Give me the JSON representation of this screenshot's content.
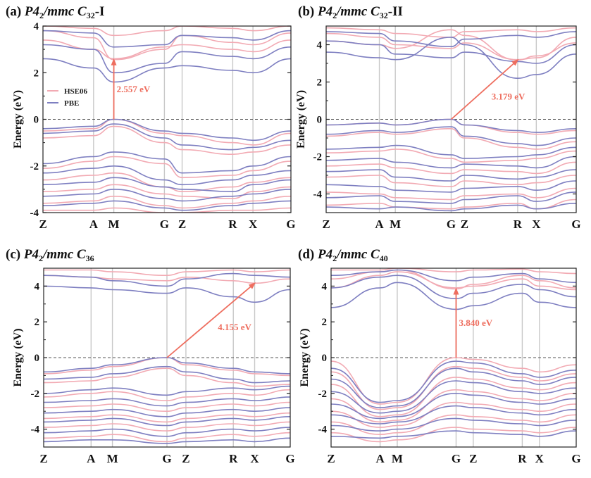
{
  "figure": {
    "colors": {
      "hse": "#f2aab3",
      "pbe": "#7e7fc1",
      "arrow": "#ee6e5f",
      "gridline": "#c8c8c8",
      "axis": "#222222"
    }
  },
  "chart_data": [
    {
      "id": "a",
      "type": "line",
      "title_prefix": "(a) ",
      "title_main": "P4",
      "title_sub": "2",
      "title_mid": "/mmc C",
      "title_sub2": "32",
      "title_suffix": "-I",
      "ylabel": "Energy (eV)",
      "ylim": [
        -4,
        4
      ],
      "yticks": [
        -4,
        -2,
        0,
        2,
        4
      ],
      "kpath": [
        "Z",
        "A",
        "M",
        "G",
        "Z",
        "R",
        "X",
        "G"
      ],
      "kpos": [
        0,
        1.0,
        1.4,
        2.4,
        2.75,
        3.75,
        4.15,
        4.9
      ],
      "legend": [
        {
          "name": "HSE06",
          "color": "#f2aab3"
        },
        {
          "name": "PBE",
          "color": "#7e7fc1"
        }
      ],
      "gap": {
        "label": "2.557 eV",
        "from": [
          1.4,
          0.0
        ],
        "to": [
          1.4,
          2.557
        ]
      },
      "bands": {
        "pbe": [
          [
            3.8,
            3.7,
            3.1,
            3.2,
            3.6,
            3.5,
            3.4,
            3.8
          ],
          [
            3.2,
            3.0,
            2.0,
            2.4,
            2.9,
            2.7,
            2.6,
            3.1
          ],
          [
            2.6,
            2.2,
            1.6,
            2.2,
            2.3,
            2.1,
            2.0,
            2.6
          ],
          [
            -0.4,
            -0.3,
            0.0,
            -0.5,
            -0.6,
            -0.8,
            -0.9,
            -0.5
          ],
          [
            -0.6,
            -0.5,
            -0.2,
            -0.8,
            -1.1,
            -1.3,
            -1.2,
            -0.9
          ],
          [
            -1.9,
            -1.6,
            -1.4,
            -1.7,
            -2.3,
            -2.2,
            -2.0,
            -1.6
          ],
          [
            -2.3,
            -2.1,
            -2.0,
            -2.6,
            -2.8,
            -2.6,
            -2.4,
            -2.2
          ],
          [
            -2.8,
            -2.7,
            -2.5,
            -2.9,
            -3.0,
            -3.1,
            -2.8,
            -2.6
          ],
          [
            -3.3,
            -3.2,
            -3.0,
            -3.4,
            -3.5,
            -3.3,
            -3.2,
            -3.0
          ],
          [
            -3.7,
            -3.6,
            -3.5,
            -3.8,
            -3.9,
            -3.7,
            -3.6,
            -3.5
          ]
        ],
        "hse": [
          [
            4.0,
            3.9,
            3.6,
            3.8,
            4.0,
            3.9,
            3.8,
            4.0
          ],
          [
            3.8,
            3.5,
            2.56,
            3.0,
            3.6,
            3.3,
            3.2,
            3.7
          ],
          [
            3.4,
            3.0,
            2.6,
            3.1,
            3.2,
            3.0,
            2.9,
            3.4
          ],
          [
            -0.5,
            -0.4,
            0.0,
            -0.6,
            -0.7,
            -1.0,
            -1.1,
            -0.6
          ],
          [
            -0.8,
            -0.7,
            -0.3,
            -1.0,
            -1.3,
            -1.5,
            -1.4,
            -1.1
          ],
          [
            -2.1,
            -1.8,
            -1.6,
            -1.9,
            -2.5,
            -2.4,
            -2.2,
            -1.8
          ],
          [
            -2.6,
            -2.4,
            -2.3,
            -2.9,
            -3.1,
            -2.9,
            -2.7,
            -2.5
          ],
          [
            -3.1,
            -3.0,
            -2.8,
            -3.2,
            -3.3,
            -3.4,
            -3.1,
            -2.9
          ],
          [
            -3.6,
            -3.5,
            -3.3,
            -3.7,
            -3.8,
            -3.6,
            -3.5,
            -3.3
          ],
          [
            -3.9,
            -3.9,
            -3.8,
            -4.0,
            -4.0,
            -3.9,
            -3.9,
            -3.8
          ]
        ]
      }
    },
    {
      "id": "b",
      "type": "line",
      "title_prefix": "(b) ",
      "title_main": "P4",
      "title_sub": "2",
      "title_mid": "/mmc C",
      "title_sub2": "32",
      "title_suffix": "-II",
      "ylabel": "Energy (eV)",
      "ylim": [
        -5,
        5
      ],
      "yticks": [
        -4,
        -2,
        0,
        2,
        4
      ],
      "kpath": [
        "Z",
        "A",
        "M",
        "G",
        "Z",
        "R",
        "X",
        "G"
      ],
      "kpos": [
        0,
        1.0,
        1.3,
        2.35,
        2.6,
        3.6,
        3.95,
        4.7
      ],
      "legend": [],
      "gap": {
        "label": "3.179 eV",
        "from": [
          2.35,
          0.0
        ],
        "to": [
          3.6,
          3.179
        ]
      },
      "bands": {
        "pbe": [
          [
            4.7,
            4.6,
            4.2,
            3.9,
            4.3,
            4.5,
            4.4,
            4.7
          ],
          [
            4.2,
            4.0,
            3.5,
            3.3,
            3.6,
            3.1,
            3.0,
            4.0
          ],
          [
            3.6,
            3.3,
            3.2,
            4.4,
            4.0,
            2.2,
            2.4,
            3.5
          ],
          [
            -0.3,
            -0.2,
            -0.3,
            0.0,
            -0.3,
            -0.6,
            -0.7,
            -0.5
          ],
          [
            -0.8,
            -0.6,
            -0.7,
            -0.4,
            -0.9,
            -1.3,
            -1.4,
            -1.0
          ],
          [
            -1.6,
            -1.5,
            -1.4,
            -1.9,
            -2.1,
            -2.0,
            -1.9,
            -1.5
          ],
          [
            -2.2,
            -2.1,
            -2.3,
            -2.6,
            -2.4,
            -2.5,
            -2.6,
            -2.0
          ],
          [
            -2.8,
            -2.7,
            -3.1,
            -3.3,
            -3.0,
            -3.2,
            -3.1,
            -2.7
          ],
          [
            -3.5,
            -3.6,
            -3.8,
            -3.9,
            -3.7,
            -3.6,
            -3.8,
            -3.3
          ],
          [
            -4.2,
            -4.1,
            -4.4,
            -4.5,
            -4.3,
            -4.1,
            -4.4,
            -3.9
          ],
          [
            -4.7,
            -4.8,
            -4.7,
            -4.9,
            -4.8,
            -4.6,
            -4.8,
            -4.5
          ]
        ],
        "hse": [
          [
            4.9,
            4.8,
            4.6,
            4.4,
            4.7,
            4.8,
            4.7,
            4.9
          ],
          [
            4.6,
            4.4,
            4.0,
            3.8,
            4.1,
            3.2,
            3.3,
            4.4
          ],
          [
            4.2,
            4.0,
            3.8,
            4.8,
            4.5,
            3.18,
            3.4,
            4.1
          ],
          [
            -0.3,
            -0.2,
            -0.3,
            0.0,
            -0.3,
            -0.7,
            -0.8,
            -0.6
          ],
          [
            -0.9,
            -0.7,
            -0.8,
            -0.5,
            -1.0,
            -1.5,
            -1.6,
            -1.2
          ],
          [
            -1.8,
            -1.7,
            -1.6,
            -2.1,
            -2.3,
            -2.2,
            -2.1,
            -1.7
          ],
          [
            -2.5,
            -2.4,
            -2.6,
            -2.9,
            -2.7,
            -2.8,
            -2.9,
            -2.3
          ],
          [
            -3.1,
            -3.0,
            -3.4,
            -3.6,
            -3.3,
            -3.5,
            -3.4,
            -3.0
          ],
          [
            -3.9,
            -4.0,
            -4.2,
            -4.3,
            -4.1,
            -4.0,
            -4.2,
            -3.7
          ],
          [
            -4.6,
            -4.5,
            -4.7,
            -4.8,
            -4.7,
            -4.5,
            -4.8,
            -4.3
          ]
        ]
      }
    },
    {
      "id": "c",
      "type": "line",
      "title_prefix": "(c) ",
      "title_main": "P4",
      "title_sub": "2",
      "title_mid": "/mmc C",
      "title_sub2": "36",
      "title_suffix": "",
      "ylabel": "Energy (eV)",
      "ylim": [
        -5,
        5
      ],
      "yticks": [
        -4,
        -2,
        0,
        2,
        4
      ],
      "kpath": [
        "Z",
        "A",
        "M",
        "G",
        "Z",
        "R",
        "X",
        "G"
      ],
      "kpos": [
        0,
        1.0,
        1.45,
        2.6,
        3.0,
        4.0,
        4.45,
        5.2
      ],
      "legend": [],
      "gap": {
        "label": "4.155 eV",
        "from": [
          2.6,
          0.0
        ],
        "to": [
          4.45,
          4.155
        ]
      },
      "bands": {
        "pbe": [
          [
            4.6,
            4.5,
            4.3,
            4.0,
            4.4,
            4.7,
            4.6,
            4.5
          ],
          [
            4.0,
            3.9,
            3.8,
            3.6,
            3.9,
            3.4,
            3.1,
            3.8
          ],
          [
            -0.8,
            -0.6,
            -0.4,
            0.0,
            -0.3,
            -0.6,
            -0.8,
            -0.9
          ],
          [
            -1.2,
            -1.1,
            -0.9,
            -0.5,
            -0.8,
            -1.2,
            -1.4,
            -1.3
          ],
          [
            -2.0,
            -1.8,
            -1.7,
            -2.1,
            -1.9,
            -1.7,
            -1.8,
            -1.6
          ],
          [
            -2.5,
            -2.4,
            -2.3,
            -2.7,
            -2.5,
            -2.3,
            -2.4,
            -2.2
          ],
          [
            -3.1,
            -3.0,
            -2.9,
            -3.3,
            -3.1,
            -2.9,
            -3.0,
            -2.8
          ],
          [
            -3.6,
            -3.5,
            -3.4,
            -3.8,
            -3.6,
            -3.4,
            -3.5,
            -3.3
          ],
          [
            -4.2,
            -4.1,
            -4.0,
            -4.4,
            -4.2,
            -4.0,
            -4.1,
            -3.9
          ],
          [
            -4.7,
            -4.6,
            -4.6,
            -4.8,
            -4.7,
            -4.6,
            -4.7,
            -4.5
          ]
        ],
        "hse": [
          [
            4.9,
            4.9,
            4.8,
            4.6,
            4.8,
            4.9,
            4.8,
            4.9
          ],
          [
            4.6,
            4.5,
            4.4,
            4.3,
            4.5,
            4.3,
            4.16,
            4.4
          ],
          [
            -0.9,
            -0.7,
            -0.5,
            0.0,
            -0.4,
            -0.7,
            -0.9,
            -1.0
          ],
          [
            -1.4,
            -1.3,
            -1.1,
            -0.6,
            -1.0,
            -1.4,
            -1.6,
            -1.5
          ],
          [
            -2.2,
            -2.0,
            -1.9,
            -2.4,
            -2.2,
            -2.0,
            -2.1,
            -1.8
          ],
          [
            -2.8,
            -2.7,
            -2.6,
            -3.0,
            -2.8,
            -2.6,
            -2.7,
            -2.5
          ],
          [
            -3.4,
            -3.3,
            -3.2,
            -3.6,
            -3.4,
            -3.2,
            -3.3,
            -3.1
          ],
          [
            -3.9,
            -3.8,
            -3.7,
            -4.1,
            -3.9,
            -3.7,
            -3.8,
            -3.6
          ],
          [
            -4.5,
            -4.4,
            -4.3,
            -4.7,
            -4.5,
            -4.3,
            -4.4,
            -4.2
          ]
        ]
      }
    },
    {
      "id": "d",
      "type": "line",
      "title_prefix": "(d) ",
      "title_main": "P4",
      "title_sub": "2",
      "title_mid": "/mmc C",
      "title_sub2": "40",
      "title_suffix": "",
      "ylabel": "Energy (eV)",
      "ylim": [
        -5,
        5
      ],
      "yticks": [
        -4,
        -2,
        0,
        2,
        4
      ],
      "kpath": [
        "Z",
        "A",
        "M",
        "G",
        "Z",
        "R",
        "X",
        "G"
      ],
      "kpos": [
        0,
        1.0,
        1.35,
        2.55,
        2.9,
        3.9,
        4.25,
        5.0
      ],
      "legend": [],
      "gap": {
        "label": "3.840 eV",
        "from": [
          2.55,
          0.0
        ],
        "to": [
          2.55,
          3.84
        ]
      },
      "bands": {
        "pbe": [
          [
            4.6,
            4.8,
            4.9,
            4.3,
            4.5,
            4.7,
            4.4,
            4.2
          ],
          [
            3.9,
            4.5,
            4.6,
            3.3,
            3.6,
            4.1,
            3.8,
            3.4
          ],
          [
            2.8,
            3.9,
            4.2,
            2.7,
            2.9,
            3.6,
            3.1,
            2.8
          ],
          [
            -0.6,
            -2.5,
            -2.4,
            -0.2,
            -0.3,
            -0.9,
            -1.1,
            -0.7
          ],
          [
            -1.2,
            -2.8,
            -2.7,
            -0.6,
            -0.8,
            -1.3,
            -1.5,
            -1.1
          ],
          [
            -1.9,
            -3.1,
            -3.0,
            -1.3,
            -1.4,
            -1.9,
            -2.0,
            -1.7
          ],
          [
            -2.6,
            -3.4,
            -3.3,
            -2.0,
            -2.1,
            -2.5,
            -2.6,
            -2.3
          ],
          [
            -3.2,
            -3.7,
            -3.6,
            -2.7,
            -2.8,
            -3.1,
            -3.2,
            -2.9
          ],
          [
            -3.8,
            -4.1,
            -4.0,
            -3.4,
            -3.5,
            -3.7,
            -3.8,
            -3.5
          ],
          [
            -4.4,
            -4.5,
            -4.4,
            -4.1,
            -4.2,
            -4.3,
            -4.4,
            -4.1
          ]
        ],
        "hse": [
          [
            4.9,
            4.9,
            5.0,
            4.8,
            4.9,
            4.95,
            4.8,
            4.7
          ],
          [
            4.4,
            4.8,
            4.9,
            3.84,
            4.1,
            4.6,
            4.3,
            3.9
          ],
          [
            3.9,
            4.6,
            4.8,
            3.9,
            4.0,
            4.4,
            4.0,
            3.8
          ],
          [
            -0.2,
            -2.6,
            -2.5,
            0.0,
            -0.1,
            -0.6,
            -0.8,
            -0.4
          ],
          [
            -0.8,
            -2.9,
            -2.8,
            -0.5,
            -0.6,
            -1.1,
            -1.3,
            -0.9
          ],
          [
            -1.5,
            -3.3,
            -3.2,
            -1.1,
            -1.2,
            -1.7,
            -1.8,
            -1.4
          ],
          [
            -2.3,
            -3.6,
            -3.5,
            -1.8,
            -1.9,
            -2.3,
            -2.4,
            -2.0
          ],
          [
            -3.0,
            -3.9,
            -3.8,
            -2.5,
            -2.6,
            -2.9,
            -3.0,
            -2.6
          ],
          [
            -3.6,
            -4.3,
            -4.2,
            -3.2,
            -3.3,
            -3.5,
            -3.6,
            -3.2
          ],
          [
            -4.2,
            -4.7,
            -4.6,
            -3.9,
            -4.0,
            -4.1,
            -4.2,
            -3.9
          ]
        ]
      }
    }
  ]
}
